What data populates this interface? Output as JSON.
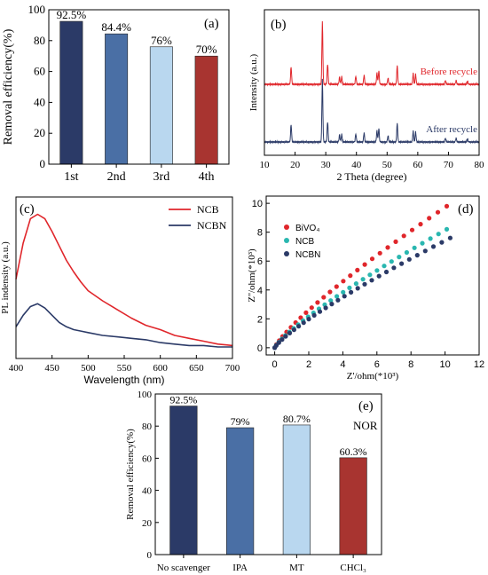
{
  "chart_data": [
    {
      "id": "a",
      "panel_label": "(a)",
      "type": "bar",
      "ylabel": "Removal efficiency(%)",
      "xlabel": "",
      "ylim": [
        0,
        100
      ],
      "yticks": [
        0,
        20,
        40,
        60,
        80,
        100
      ],
      "categories": [
        "1st",
        "2nd",
        "3rd",
        "4th"
      ],
      "values": [
        92.5,
        84.4,
        76,
        70
      ],
      "value_labels": [
        "92.5%",
        "84.4%",
        "76%",
        "70%"
      ],
      "colors": [
        "#2b3a67",
        "#4a6fa5",
        "#b9d7ef",
        "#a83430"
      ]
    },
    {
      "id": "b",
      "panel_label": "(b)",
      "type": "line",
      "ylabel": "Intensity (a.u.)",
      "xlabel": "2 Theta (degree)",
      "xlim": [
        10,
        80
      ],
      "xticks": [
        10,
        20,
        30,
        40,
        50,
        60,
        70,
        80
      ],
      "series": [
        {
          "name": "Before recycle",
          "color": "#e0262b",
          "peaks": [
            [
              18.7,
              0.28
            ],
            [
              28.9,
              1.0
            ],
            [
              30.6,
              0.33
            ],
            [
              34.5,
              0.12
            ],
            [
              35.2,
              0.12
            ],
            [
              39.8,
              0.13
            ],
            [
              42.5,
              0.15
            ],
            [
              46.7,
              0.18
            ],
            [
              47.3,
              0.22
            ],
            [
              50.3,
              0.1
            ],
            [
              53.3,
              0.3
            ],
            [
              58.5,
              0.17
            ],
            [
              59.3,
              0.16
            ],
            [
              69.0,
              0.06
            ],
            [
              72.5,
              0.06
            ],
            [
              76.2,
              0.05
            ]
          ]
        },
        {
          "name": "After recycle",
          "color": "#2b3a67",
          "peaks": [
            [
              18.7,
              0.28
            ],
            [
              28.9,
              1.0
            ],
            [
              30.6,
              0.33
            ],
            [
              34.5,
              0.12
            ],
            [
              35.2,
              0.12
            ],
            [
              39.8,
              0.13
            ],
            [
              42.5,
              0.15
            ],
            [
              46.7,
              0.18
            ],
            [
              47.3,
              0.22
            ],
            [
              50.3,
              0.1
            ],
            [
              53.3,
              0.3
            ],
            [
              58.5,
              0.17
            ],
            [
              59.3,
              0.16
            ],
            [
              69.0,
              0.06
            ],
            [
              72.5,
              0.06
            ],
            [
              76.2,
              0.05
            ]
          ]
        }
      ]
    },
    {
      "id": "c",
      "panel_label": "(c)",
      "type": "line",
      "ylabel": "PL indensity (a.u.)",
      "xlabel": "Wavelength (nm)",
      "xlim": [
        400,
        700
      ],
      "xticks": [
        400,
        450,
        500,
        550,
        600,
        650,
        700
      ],
      "ylim": [
        0,
        1.12
      ],
      "series": [
        {
          "name": "NCB",
          "color": "#e0262b",
          "x": [
            400,
            410,
            420,
            430,
            440,
            450,
            460,
            470,
            480,
            490,
            500,
            520,
            540,
            560,
            580,
            600,
            620,
            640,
            660,
            680,
            700
          ],
          "y": [
            0.55,
            0.8,
            0.97,
            1.0,
            0.97,
            0.88,
            0.78,
            0.68,
            0.6,
            0.53,
            0.47,
            0.4,
            0.34,
            0.28,
            0.23,
            0.2,
            0.16,
            0.14,
            0.12,
            0.1,
            0.09
          ]
        },
        {
          "name": "NCBN",
          "color": "#2b3a67",
          "x": [
            400,
            410,
            420,
            430,
            440,
            450,
            460,
            470,
            480,
            490,
            500,
            520,
            540,
            560,
            580,
            600,
            620,
            640,
            660,
            680,
            700
          ],
          "y": [
            0.22,
            0.3,
            0.36,
            0.38,
            0.35,
            0.3,
            0.25,
            0.22,
            0.2,
            0.19,
            0.18,
            0.16,
            0.15,
            0.14,
            0.13,
            0.11,
            0.1,
            0.09,
            0.09,
            0.08,
            0.08
          ]
        }
      ]
    },
    {
      "id": "d",
      "panel_label": "(d)",
      "type": "scatter",
      "ylabel": "Z''/ohm(*10³)",
      "xlabel": "Z'/ohm(*10³)",
      "xlim": [
        -0.5,
        12
      ],
      "ylim": [
        -0.5,
        10.5
      ],
      "xticks": [
        0,
        2,
        4,
        6,
        8,
        10,
        12
      ],
      "yticks": [
        0,
        2,
        4,
        6,
        8,
        10
      ],
      "series": [
        {
          "name": "BiVO₄",
          "color": "#e0262b",
          "x_end": 10.1,
          "y_end": 9.8,
          "n": 28
        },
        {
          "name": "NCB",
          "color": "#2ab7b0",
          "x_end": 10.1,
          "y_end": 8.2,
          "n": 30
        },
        {
          "name": "NCBN",
          "color": "#2b3a67",
          "x_end": 10.3,
          "y_end": 7.6,
          "n": 30
        }
      ]
    },
    {
      "id": "e",
      "panel_label": "(e)",
      "type": "bar",
      "annotation": "NOR",
      "ylabel": "Removal efficiency(%)",
      "xlabel": "",
      "ylim": [
        0,
        100
      ],
      "yticks": [
        0,
        20,
        40,
        60,
        80,
        100
      ],
      "categories": [
        "No scavenger",
        "IPA",
        "MT",
        "CHCl₃"
      ],
      "values": [
        92.5,
        79,
        80.7,
        60.3
      ],
      "value_labels": [
        "92.5%",
        "79%",
        "80.7%",
        "60.3%"
      ],
      "colors": [
        "#2b3a67",
        "#4a6fa5",
        "#b9d7ef",
        "#a83430"
      ]
    }
  ]
}
